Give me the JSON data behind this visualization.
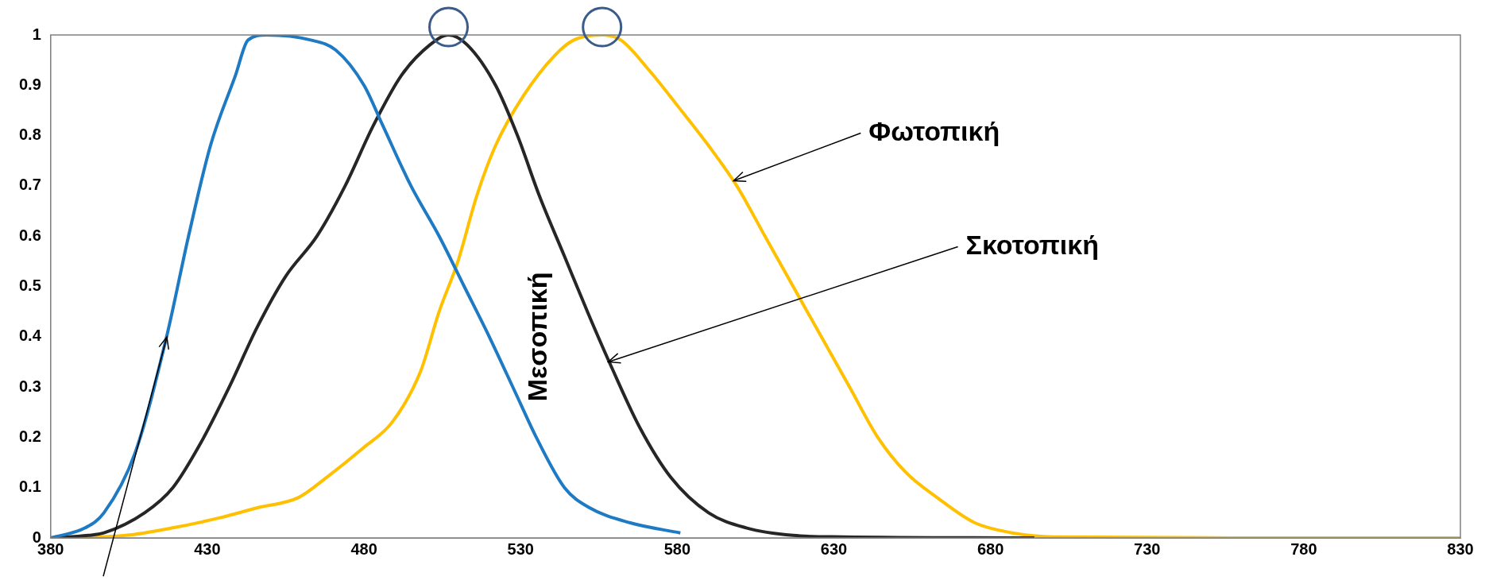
{
  "chart_data": {
    "type": "line",
    "xlim": [
      380,
      830
    ],
    "xticks": [
      380,
      430,
      480,
      530,
      580,
      630,
      680,
      730,
      780,
      830
    ],
    "ylim": [
      0,
      1
    ],
    "yticks": [
      0,
      0.1,
      0.2,
      0.3,
      0.4,
      0.5,
      0.6,
      0.7,
      0.8,
      0.9,
      1
    ],
    "grid": false,
    "legend": false,
    "marker": "none",
    "line_style": "solid",
    "series": [
      {
        "color": "#1f7ac4",
        "x": [
          380,
          391,
          397,
          407,
          417,
          424,
          431,
          439,
          443,
          449,
          463,
          471,
          480,
          486,
          495,
          504,
          512,
          520,
          529,
          535,
          544,
          552,
          565,
          581
        ],
        "values": [
          0,
          0.02,
          0.05,
          0.17,
          0.4,
          0.6,
          0.78,
          0.92,
          0.99,
          1,
          0.99,
          0.97,
          0.9,
          0.82,
          0.7,
          0.6,
          0.5,
          0.4,
          0.28,
          0.2,
          0.1,
          0.06,
          0.03,
          0.01
        ]
      },
      {
        "color": "#262626",
        "x": [
          380,
          392,
          397,
          410,
          419,
          428,
          437,
          446,
          455,
          465,
          474,
          483,
          492,
          501,
          507,
          513,
          522,
          529,
          536,
          544,
          552,
          559,
          568,
          578,
          590,
          602,
          617,
          633,
          694
        ],
        "values": [
          0,
          0.005,
          0.01,
          0.05,
          0.1,
          0.19,
          0.3,
          0.42,
          0.52,
          0.6,
          0.7,
          0.82,
          0.92,
          0.98,
          1,
          0.98,
          0.9,
          0.8,
          0.68,
          0.56,
          0.44,
          0.34,
          0.22,
          0.12,
          0.05,
          0.02,
          0.005,
          0.002,
          0
        ]
      },
      {
        "color": "#ffc000",
        "x": [
          380,
          404,
          419,
          434,
          446,
          459,
          468,
          480,
          489,
          498,
          504,
          510,
          516,
          522,
          531,
          541,
          547,
          556,
          562,
          571,
          580,
          590,
          599,
          608,
          617,
          626,
          635,
          644,
          653,
          663,
          675,
          687,
          700,
          780,
          830
        ],
        "values": [
          0,
          0.005,
          0.02,
          0.04,
          0.06,
          0.08,
          0.12,
          0.18,
          0.23,
          0.33,
          0.45,
          0.55,
          0.68,
          0.78,
          0.88,
          0.96,
          0.99,
          1,
          0.99,
          0.93,
          0.86,
          0.78,
          0.7,
          0.6,
          0.5,
          0.4,
          0.3,
          0.2,
          0.13,
          0.08,
          0.03,
          0.01,
          0.002,
          0,
          0
        ]
      }
    ],
    "annotations": [
      {
        "text": "Φωτοπική",
        "x": 598,
        "y": 0.71
      },
      {
        "text": "Σκοτοπική",
        "x": 558,
        "y": 0.35
      },
      "Μεσοπική"
    ]
  }
}
